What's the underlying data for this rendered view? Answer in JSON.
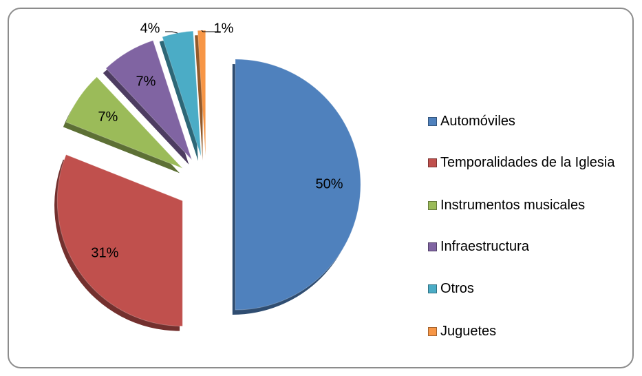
{
  "chart_data": {
    "type": "pie",
    "categories": [
      "Automóviles",
      "Temporalidades de la Iglesia",
      "Instrumentos musicales",
      "Infraestructura",
      "Otros",
      "Juguetes"
    ],
    "values": [
      50,
      31,
      7,
      7,
      4,
      1
    ],
    "value_labels": [
      "50%",
      "31%",
      "7%",
      "7%",
      "4%",
      "1%"
    ],
    "colors": [
      "#4f81bd",
      "#c0504d",
      "#9bbb59",
      "#8064a2",
      "#4bacc6",
      "#f79646"
    ],
    "legend": "right"
  }
}
